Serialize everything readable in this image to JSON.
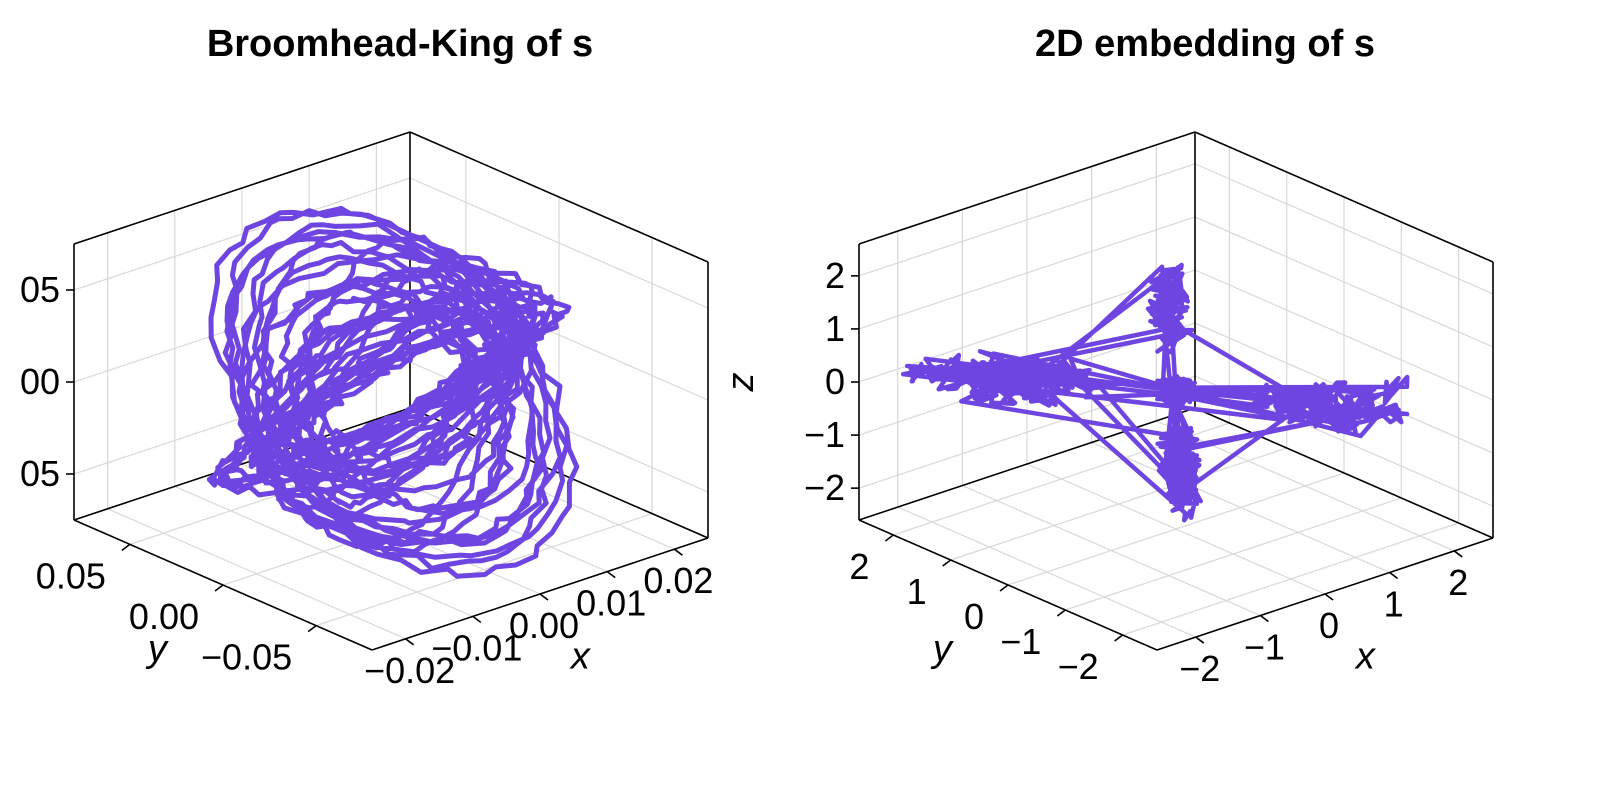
{
  "chart_data": [
    {
      "type": "line",
      "title": "Broomhead-King of s",
      "xlabel": "x",
      "ylabel": "y",
      "zlabel": "",
      "xlim": [
        -0.025,
        0.025
      ],
      "ylim": [
        -0.08,
        0.08
      ],
      "zlim": [
        -0.075,
        0.075
      ],
      "x_ticks": [
        "−0.02",
        "−0.01",
        "0.00",
        "0.01",
        "0.02"
      ],
      "x_tick_values": [
        -0.02,
        -0.01,
        0.0,
        0.01,
        0.02
      ],
      "y_ticks": [
        "−0.05",
        "0.00",
        "0.05"
      ],
      "y_tick_values": [
        -0.05,
        0.0,
        0.05
      ],
      "z_ticks": [
        "05",
        "00",
        "05"
      ],
      "z_tick_values": [
        -0.05,
        0.0,
        0.05
      ],
      "grid": true,
      "series_color": "#6f45e1"
    },
    {
      "type": "line",
      "title": "2D embedding of s",
      "xlabel": "x",
      "ylabel": "y",
      "zlabel": "z",
      "xlim": [
        -2.6,
        2.6
      ],
      "ylim": [
        -2.6,
        2.6
      ],
      "zlim": [
        -2.6,
        2.6
      ],
      "x_ticks": [
        "−2",
        "−1",
        "0",
        "1",
        "2"
      ],
      "x_tick_values": [
        -2,
        -1,
        0,
        1,
        2
      ],
      "y_ticks": [
        "−2",
        "−1",
        "0",
        "1",
        "2"
      ],
      "y_tick_values": [
        -2,
        -1,
        0,
        1,
        2
      ],
      "z_ticks": [
        "−2",
        "−1",
        "0",
        "1",
        "2"
      ],
      "z_tick_values": [
        -2,
        -1,
        0,
        1,
        2
      ],
      "grid": true,
      "series_color": "#6f45e1"
    }
  ]
}
